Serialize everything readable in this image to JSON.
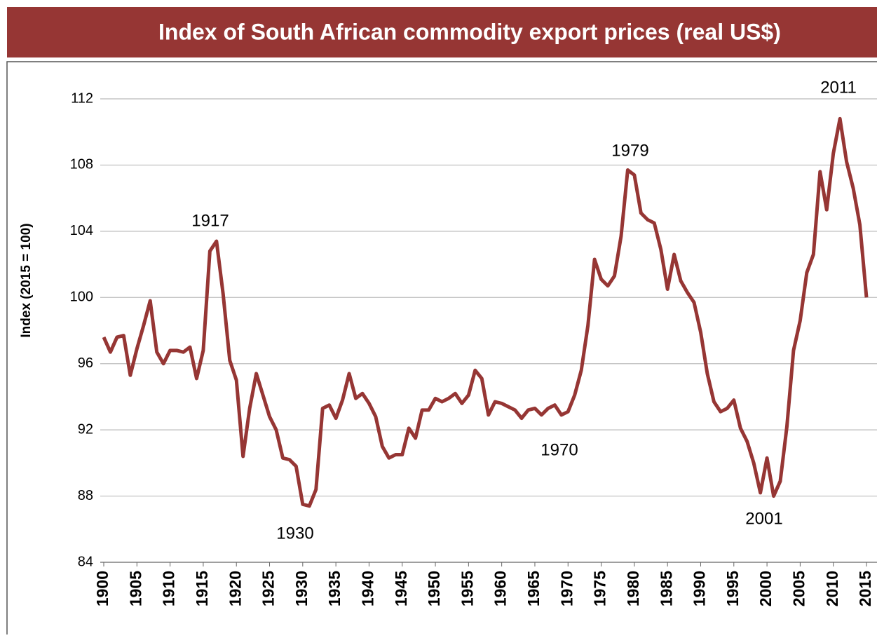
{
  "chart_data": {
    "type": "line",
    "title": "Index of South African commodity export prices (real US$)",
    "y_label": "Index (2015 = 100)",
    "x": [
      1900,
      1901,
      1902,
      1903,
      1904,
      1905,
      1906,
      1907,
      1908,
      1909,
      1910,
      1911,
      1912,
      1913,
      1914,
      1915,
      1916,
      1917,
      1918,
      1919,
      1920,
      1921,
      1922,
      1923,
      1924,
      1925,
      1926,
      1927,
      1928,
      1929,
      1930,
      1931,
      1932,
      1933,
      1934,
      1935,
      1936,
      1937,
      1938,
      1939,
      1940,
      1941,
      1942,
      1943,
      1944,
      1945,
      1946,
      1947,
      1948,
      1949,
      1950,
      1951,
      1952,
      1953,
      1954,
      1955,
      1956,
      1957,
      1958,
      1959,
      1960,
      1961,
      1962,
      1963,
      1964,
      1965,
      1966,
      1967,
      1968,
      1969,
      1970,
      1971,
      1972,
      1973,
      1974,
      1975,
      1976,
      1977,
      1978,
      1979,
      1980,
      1981,
      1982,
      1983,
      1984,
      1985,
      1986,
      1987,
      1988,
      1989,
      1990,
      1991,
      1992,
      1993,
      1994,
      1995,
      1996,
      1997,
      1998,
      1999,
      2000,
      2001,
      2002,
      2003,
      2004,
      2005,
      2006,
      2007,
      2008,
      2009,
      2010,
      2011,
      2012,
      2013,
      2014,
      2015
    ],
    "series": [
      {
        "name": "Index",
        "color": "#963634",
        "values": [
          97.6,
          96.7,
          97.6,
          97.7,
          95.3,
          96.9,
          98.3,
          99.8,
          96.7,
          96.0,
          96.8,
          96.8,
          96.7,
          97.0,
          95.1,
          96.8,
          102.8,
          103.4,
          100.2,
          96.2,
          95.0,
          90.4,
          93.3,
          95.4,
          94.1,
          92.8,
          92.0,
          90.3,
          90.2,
          89.8,
          87.5,
          87.4,
          88.4,
          93.3,
          93.5,
          92.7,
          93.8,
          95.4,
          93.9,
          94.2,
          93.6,
          92.8,
          91.0,
          90.3,
          90.5,
          90.5,
          92.1,
          91.5,
          93.2,
          93.2,
          93.9,
          93.7,
          93.9,
          94.2,
          93.6,
          94.1,
          95.6,
          95.1,
          92.9,
          93.7,
          93.6,
          93.4,
          93.2,
          92.7,
          93.2,
          93.3,
          92.9,
          93.3,
          93.5,
          92.9,
          93.1,
          94.1,
          95.6,
          98.3,
          102.3,
          101.1,
          100.7,
          101.3,
          103.7,
          107.7,
          107.4,
          105.1,
          104.7,
          104.5,
          102.9,
          100.5,
          102.6,
          101.0,
          100.3,
          99.7,
          97.9,
          95.4,
          93.7,
          93.1,
          93.3,
          93.8,
          92.1,
          91.3,
          90.0,
          88.2,
          90.3,
          88.0,
          88.9,
          92.2,
          96.8,
          98.6,
          101.5,
          102.6,
          107.6,
          105.3,
          108.7,
          110.8,
          108.2,
          106.6,
          104.4,
          100.0
        ]
      }
    ],
    "xlim": [
      1900,
      2015
    ],
    "xticks": [
      1900,
      1905,
      1910,
      1915,
      1920,
      1925,
      1930,
      1935,
      1940,
      1945,
      1950,
      1955,
      1960,
      1965,
      1970,
      1975,
      1980,
      1985,
      1990,
      1995,
      2000,
      2005,
      2010,
      2015
    ],
    "ylim": [
      84,
      112
    ],
    "yticks": [
      84,
      88,
      92,
      96,
      100,
      104,
      108,
      112
    ],
    "grid": true,
    "annotations": [
      "1917",
      "1930",
      "1970",
      "1979",
      "2001",
      "2011"
    ]
  }
}
